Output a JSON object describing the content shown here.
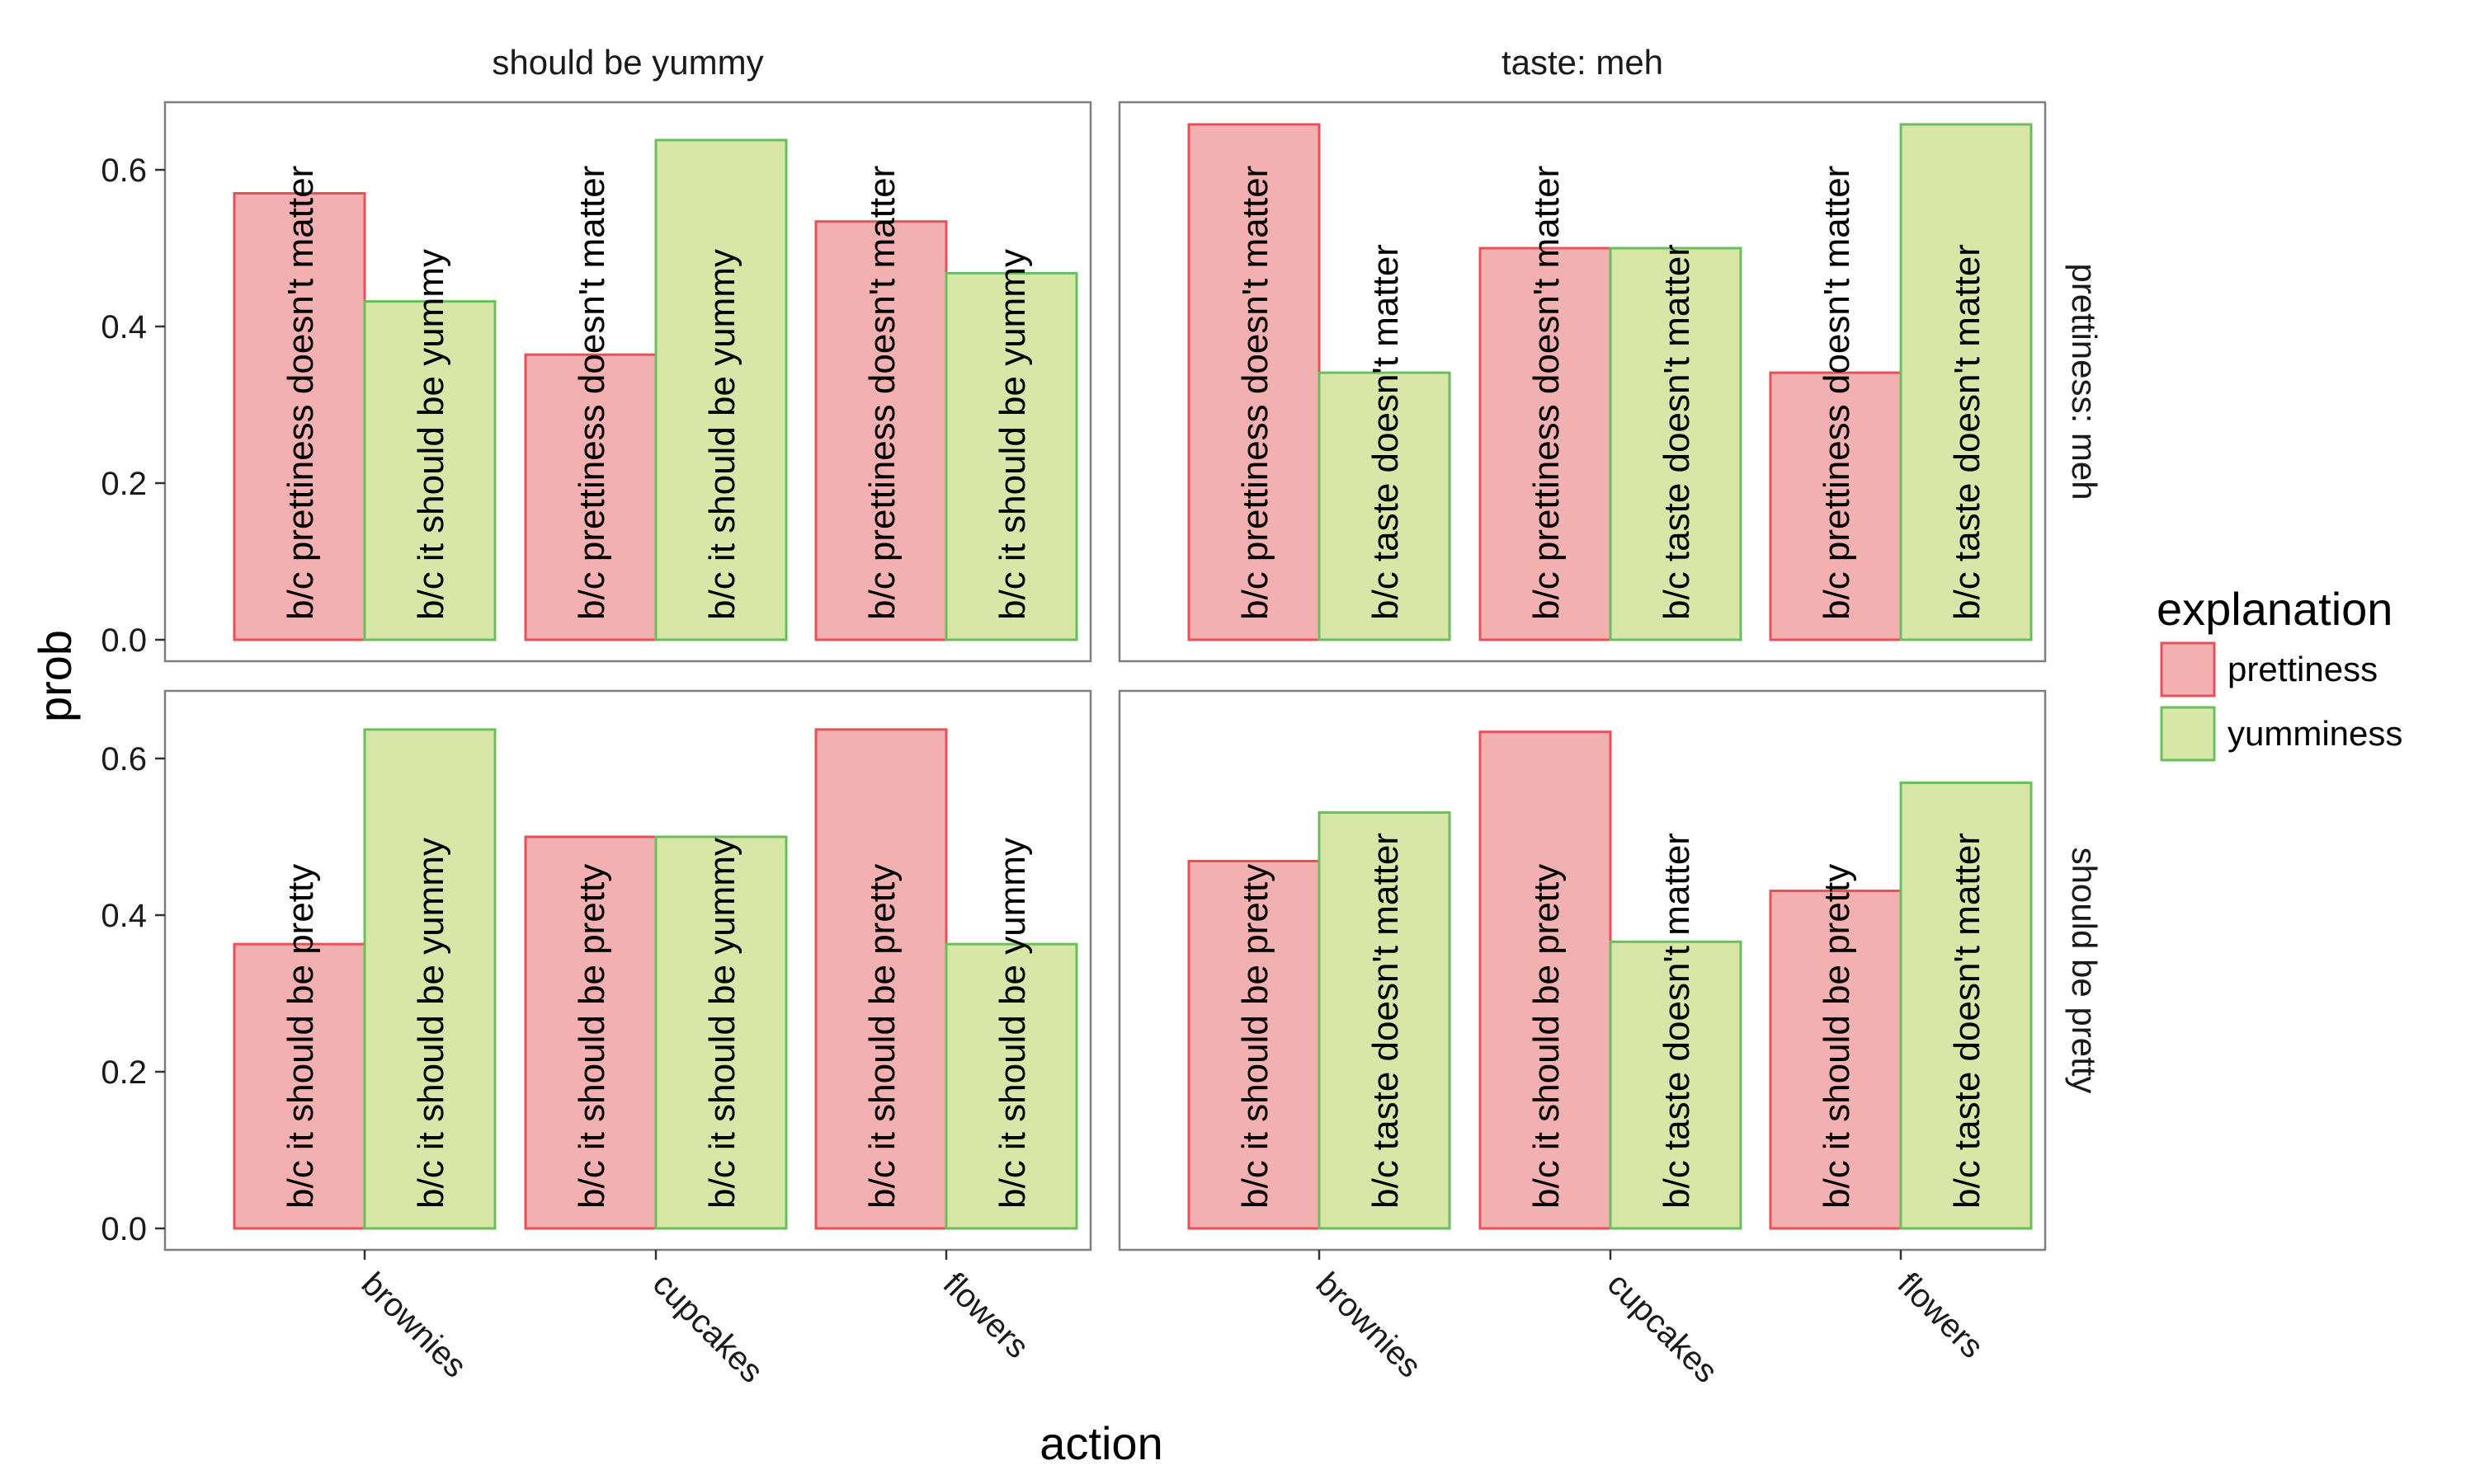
{
  "chart_data": {
    "type": "bar",
    "xlabel": "action",
    "ylabel": "prob",
    "ylim": [
      0,
      0.68
    ],
    "yticks": [
      "0.0",
      "0.2",
      "0.4",
      "0.6"
    ],
    "grid": false,
    "legend": {
      "title": "explanation",
      "placement": "right",
      "entries": [
        {
          "name": "prettiness",
          "fill": "#f3b0b0",
          "stroke": "#e8505a"
        },
        {
          "name": "yumminess",
          "fill": "#d8e6a8",
          "stroke": "#6abf5c"
        }
      ]
    },
    "categories": [
      "brownies",
      "cupcakes",
      "flowers"
    ],
    "col_facets": [
      "should be yummy",
      "taste: meh"
    ],
    "row_facets": [
      "prettiness: meh",
      "should be pretty"
    ],
    "panels": [
      {
        "row": 0,
        "col": 0,
        "series": [
          {
            "name": "prettiness",
            "values": [
              0.57,
              0.364,
              0.534
            ],
            "labels": [
              "b/c prettiness doesn't matter",
              "b/c prettiness doesn't matter",
              "b/c prettiness doesn't matter"
            ]
          },
          {
            "name": "yumminess",
            "values": [
              0.432,
              0.638,
              0.468
            ],
            "labels": [
              "b/c it should be yummy",
              "b/c it should be yummy",
              "b/c it should be yummy"
            ]
          }
        ]
      },
      {
        "row": 0,
        "col": 1,
        "series": [
          {
            "name": "prettiness",
            "values": [
              0.658,
              0.5,
              0.341
            ],
            "labels": [
              "b/c prettiness doesn't matter",
              "b/c prettiness doesn't matter",
              "b/c prettiness doesn't matter"
            ]
          },
          {
            "name": "yumminess",
            "values": [
              0.341,
              0.5,
              0.658
            ],
            "labels": [
              "b/c taste doesn't matter",
              "b/c taste doesn't matter",
              "b/c taste doesn't matter"
            ]
          }
        ]
      },
      {
        "row": 1,
        "col": 0,
        "series": [
          {
            "name": "prettiness",
            "values": [
              0.363,
              0.5,
              0.637
            ],
            "labels": [
              "b/c it should be pretty",
              "b/c it should be pretty",
              "b/c it should be pretty"
            ]
          },
          {
            "name": "yumminess",
            "values": [
              0.637,
              0.5,
              0.363
            ],
            "labels": [
              "b/c it should be yummy",
              "b/c it should be yummy",
              "b/c it should be yummy"
            ]
          }
        ]
      },
      {
        "row": 1,
        "col": 1,
        "series": [
          {
            "name": "prettiness",
            "values": [
              0.469,
              0.634,
              0.431
            ],
            "labels": [
              "b/c it should be pretty",
              "b/c it should be pretty",
              "b/c it should be pretty"
            ]
          },
          {
            "name": "yumminess",
            "values": [
              0.531,
              0.366,
              0.569
            ],
            "labels": [
              "b/c taste doesn't matter",
              "b/c taste doesn't matter",
              "b/c taste doesn't matter"
            ]
          }
        ]
      }
    ]
  }
}
